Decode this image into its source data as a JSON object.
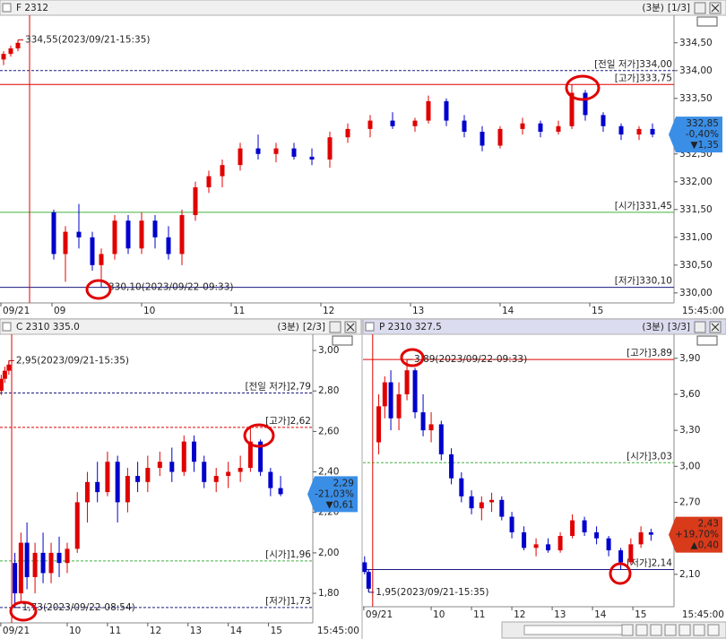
{
  "chart_data": [
    {
      "type": "candlestick",
      "title": "F 2312",
      "interval": "(3분)",
      "page": "[1/3]",
      "up_color": "#e00000",
      "down_color": "#0000cc",
      "x": [
        8.46,
        8.54,
        8.62,
        9.02,
        9.15,
        9.3,
        9.45,
        9.55,
        9.7,
        9.85,
        10.0,
        10.15,
        10.3,
        10.45,
        10.6,
        10.75,
        10.9,
        11.1,
        11.3,
        11.5,
        11.7,
        11.9,
        12.1,
        12.3,
        12.55,
        12.8,
        13.05,
        13.2,
        13.4,
        13.6,
        13.8,
        14.0,
        14.25,
        14.45,
        14.65,
        14.8,
        14.95,
        15.15,
        15.35,
        15.55,
        15.7
      ],
      "open": [
        334.2,
        334.3,
        334.4,
        331.45,
        330.7,
        331.1,
        331.0,
        330.5,
        330.7,
        331.3,
        330.8,
        331.3,
        331.0,
        330.7,
        331.4,
        331.9,
        332.1,
        332.3,
        332.6,
        332.5,
        332.6,
        332.45,
        332.4,
        332.8,
        332.95,
        333.1,
        333.0,
        333.1,
        333.45,
        333.1,
        332.9,
        332.65,
        332.95,
        333.05,
        332.9,
        333.0,
        333.6,
        333.2,
        333.0,
        332.85,
        332.95
      ],
      "high": [
        334.35,
        334.45,
        334.55,
        331.5,
        331.2,
        331.6,
        331.1,
        330.8,
        331.4,
        331.4,
        331.45,
        331.4,
        331.2,
        331.5,
        332.0,
        332.2,
        332.4,
        332.7,
        332.85,
        332.7,
        332.7,
        332.6,
        332.9,
        333.05,
        333.2,
        333.25,
        333.15,
        333.55,
        333.5,
        333.2,
        333.0,
        333.0,
        333.15,
        333.1,
        333.1,
        333.75,
        333.65,
        333.25,
        333.05,
        333.0,
        333.05
      ],
      "low": [
        334.1,
        334.25,
        334.35,
        330.6,
        330.2,
        330.8,
        330.4,
        330.1,
        330.6,
        330.7,
        330.7,
        330.8,
        330.6,
        330.5,
        331.3,
        331.8,
        331.9,
        332.2,
        332.4,
        332.35,
        332.4,
        332.3,
        332.25,
        332.7,
        332.8,
        332.95,
        332.9,
        333.05,
        333.0,
        332.8,
        332.55,
        332.6,
        332.85,
        332.8,
        332.85,
        332.95,
        333.1,
        332.9,
        332.75,
        332.75,
        332.8
      ],
      "close": [
        334.3,
        334.4,
        334.5,
        330.7,
        331.1,
        331.0,
        330.5,
        330.7,
        331.3,
        330.8,
        331.3,
        331.0,
        330.7,
        331.4,
        331.9,
        332.1,
        332.3,
        332.6,
        332.5,
        332.6,
        332.45,
        332.4,
        332.8,
        332.95,
        333.1,
        333.0,
        333.1,
        333.45,
        333.1,
        332.9,
        332.65,
        332.95,
        333.05,
        332.9,
        333.0,
        333.6,
        333.2,
        333.0,
        332.85,
        332.95,
        332.85
      ],
      "xlim": [
        8.42,
        15.94
      ],
      "xticks": [
        {
          "value": 8.43,
          "label": "09/21"
        },
        {
          "value": 9,
          "label": "09"
        },
        {
          "value": 10,
          "label": "10"
        },
        {
          "value": 11,
          "label": "11"
        },
        {
          "value": 12,
          "label": "12"
        },
        {
          "value": 13,
          "label": "13"
        },
        {
          "value": 14,
          "label": "14"
        },
        {
          "value": 15,
          "label": "15"
        }
      ],
      "time_label": "15:45:00",
      "separator_x": 8.75,
      "ylim": [
        329.82,
        334.98
      ],
      "yticks": [
        {
          "value": 330,
          "label": "330,00"
        },
        {
          "value": 330.5,
          "label": "330,50"
        },
        {
          "value": 331,
          "label": "331,00"
        },
        {
          "value": 331.5,
          "label": "331,50"
        },
        {
          "value": 332,
          "label": "332,00"
        },
        {
          "value": 332.5,
          "label": "332,50"
        },
        {
          "value": 333,
          "label": "333,00"
        },
        {
          "value": 333.5,
          "label": "333,50"
        },
        {
          "value": 334,
          "label": "334,00"
        },
        {
          "value": 334.5,
          "label": "334,50"
        }
      ],
      "reference_lines": [
        {
          "label": "[전일 저가]334,00",
          "value": 334.0,
          "color": "#1a1a80",
          "dash": true
        },
        {
          "label": "[고가]333,75",
          "value": 333.75,
          "color": "#e00000",
          "dash": false
        },
        {
          "label": "[시가]331,45",
          "value": 331.45,
          "color": "#40b040",
          "dash": false
        },
        {
          "label": "[저가]330,10",
          "value": 330.1,
          "color": "#1a1a80",
          "dash": false
        }
      ],
      "annotations": [
        {
          "text": "334,55(2023/09/21-15:35)",
          "x": 8.62,
          "value": 334.55,
          "color": "#c00000"
        },
        {
          "text": "330,10(2023/09/22-09:33)",
          "x": 9.55,
          "value": 330.1,
          "color": "#1a1a80"
        }
      ],
      "price_label": {
        "value": 332.85,
        "label": "332,85",
        "change": "-0,40%",
        "diff": "▼1,35",
        "color": "#3a8ee6"
      }
    },
    {
      "type": "candlestick",
      "title": "C 2310 335.0",
      "interval": "(3분)",
      "page": "[2/3]",
      "up_color": "#e00000",
      "down_color": "#0000cc",
      "x": [
        8.36,
        8.45,
        8.55,
        8.7,
        8.85,
        9.0,
        9.2,
        9.4,
        9.6,
        9.8,
        10.0,
        10.25,
        10.5,
        10.75,
        11.0,
        11.25,
        11.5,
        11.75,
        12.0,
        12.3,
        12.6,
        12.9,
        13.15,
        13.4,
        13.7,
        14.0,
        14.3,
        14.55,
        14.8,
        15.05,
        15.3
      ],
      "open": [
        2.8,
        2.86,
        2.9,
        1.95,
        1.8,
        2.05,
        1.88,
        2.0,
        1.9,
        2.0,
        1.95,
        2.02,
        2.25,
        2.35,
        2.3,
        2.45,
        2.25,
        2.38,
        2.35,
        2.42,
        2.45,
        2.4,
        2.55,
        2.45,
        2.35,
        2.38,
        2.4,
        2.42,
        2.55,
        2.4,
        2.32
      ],
      "high": [
        2.88,
        2.92,
        2.95,
        2.0,
        2.1,
        2.15,
        2.05,
        2.1,
        2.05,
        2.08,
        2.05,
        2.3,
        2.4,
        2.45,
        2.5,
        2.48,
        2.42,
        2.45,
        2.48,
        2.5,
        2.52,
        2.58,
        2.58,
        2.48,
        2.42,
        2.45,
        2.48,
        2.62,
        2.56,
        2.42,
        2.38
      ],
      "low": [
        2.78,
        2.84,
        2.88,
        1.73,
        1.76,
        1.82,
        1.8,
        1.85,
        1.85,
        1.88,
        1.9,
        2.0,
        2.15,
        2.25,
        2.28,
        2.15,
        2.2,
        2.3,
        2.3,
        2.38,
        2.35,
        2.38,
        2.4,
        2.32,
        2.3,
        2.32,
        2.35,
        2.4,
        2.38,
        2.28,
        2.28
      ],
      "close": [
        2.86,
        2.9,
        2.93,
        1.8,
        2.05,
        1.88,
        2.0,
        1.9,
        2.0,
        1.95,
        2.02,
        2.25,
        2.35,
        2.3,
        2.45,
        2.25,
        2.38,
        2.35,
        2.42,
        2.45,
        2.4,
        2.55,
        2.45,
        2.35,
        2.38,
        2.4,
        2.42,
        2.55,
        2.4,
        2.32,
        2.29
      ],
      "xlim": [
        8.33,
        16.1
      ],
      "xticks": [
        {
          "value": 8.35,
          "label": "09/21"
        },
        {
          "value": 10,
          "label": "10"
        },
        {
          "value": 11,
          "label": "11"
        },
        {
          "value": 12,
          "label": "12"
        },
        {
          "value": 13,
          "label": "13"
        },
        {
          "value": 14,
          "label": "14"
        },
        {
          "value": 15,
          "label": "15"
        }
      ],
      "time_label": "15:45:00",
      "separator_x": 8.62,
      "ylim": [
        1.654,
        3.08
      ],
      "yticks": [
        {
          "value": 1.8,
          "label": "1,80"
        },
        {
          "value": 2.0,
          "label": "2,00"
        },
        {
          "value": 2.2,
          "label": "2,20"
        },
        {
          "value": 2.4,
          "label": "2,40"
        },
        {
          "value": 2.6,
          "label": "2,60"
        },
        {
          "value": 2.8,
          "label": "2,80"
        },
        {
          "value": 3.0,
          "label": "3,00"
        }
      ],
      "reference_lines": [
        {
          "label": "[전일 저가]2,79",
          "value": 2.79,
          "color": "#1a1a80",
          "dash": true
        },
        {
          "label": "[고가]2,62",
          "value": 2.62,
          "color": "#e00000",
          "dash": true
        },
        {
          "label": "[시가]1,96",
          "value": 1.96,
          "color": "#40b040",
          "dash": true
        },
        {
          "label": "[저가]1,73",
          "value": 1.73,
          "color": "#1a1a80",
          "dash": true
        }
      ],
      "annotations": [
        {
          "text": "2,95(2023/09/21-15:35)",
          "x": 8.55,
          "value": 2.95,
          "color": "#c00000"
        },
        {
          "text": "1,73(2023/09/22-08:54)",
          "x": 8.7,
          "value": 1.73,
          "color": "#1a1a80"
        }
      ],
      "price_label": {
        "value": 2.29,
        "label": "2,29",
        "change": "-21,03%",
        "diff": "▼0,61",
        "color": "#3a8ee6"
      }
    },
    {
      "type": "candlestick",
      "title": "P 2310 327.5",
      "interval": "(3분)",
      "page": "[3/3]",
      "up_color": "#e00000",
      "down_color": "#0000cc",
      "x": [
        8.35,
        8.45,
        8.7,
        8.85,
        9.0,
        9.2,
        9.4,
        9.6,
        9.8,
        10.0,
        10.25,
        10.5,
        10.75,
        11.0,
        11.25,
        11.5,
        11.75,
        12.0,
        12.3,
        12.6,
        12.9,
        13.2,
        13.5,
        13.8,
        14.1,
        14.4,
        14.7,
        14.95,
        15.2,
        15.45
      ],
      "open": [
        2.2,
        2.12,
        3.2,
        3.5,
        3.7,
        3.4,
        3.6,
        3.8,
        3.45,
        3.3,
        3.35,
        3.1,
        2.9,
        2.75,
        2.65,
        2.7,
        2.72,
        2.58,
        2.45,
        2.32,
        2.35,
        2.3,
        2.42,
        2.55,
        2.45,
        2.4,
        2.3,
        2.2,
        2.35,
        2.45
      ],
      "high": [
        2.25,
        2.14,
        3.6,
        3.75,
        3.8,
        3.7,
        3.89,
        3.82,
        3.6,
        3.45,
        3.38,
        3.15,
        2.95,
        2.8,
        2.75,
        2.78,
        2.75,
        2.62,
        2.5,
        2.4,
        2.4,
        2.45,
        2.6,
        2.58,
        2.5,
        2.42,
        2.32,
        2.4,
        2.5,
        2.48
      ],
      "low": [
        2.1,
        1.95,
        3.1,
        3.4,
        3.3,
        3.3,
        3.55,
        3.4,
        3.25,
        3.2,
        3.05,
        2.85,
        2.7,
        2.6,
        2.55,
        2.62,
        2.55,
        2.4,
        2.3,
        2.25,
        2.28,
        2.28,
        2.4,
        2.42,
        2.35,
        2.25,
        2.14,
        2.18,
        2.32,
        2.38
      ],
      "close": [
        2.12,
        1.98,
        3.5,
        3.7,
        3.4,
        3.6,
        3.8,
        3.45,
        3.3,
        3.35,
        3.1,
        2.9,
        2.75,
        2.65,
        2.7,
        2.72,
        2.58,
        2.45,
        2.32,
        2.35,
        2.3,
        2.42,
        2.55,
        2.45,
        2.4,
        2.3,
        2.2,
        2.35,
        2.45,
        2.43
      ],
      "xlim": [
        8.31,
        16.02
      ],
      "xticks": [
        {
          "value": 8.33,
          "label": "09/21"
        },
        {
          "value": 10,
          "label": "10"
        },
        {
          "value": 11,
          "label": "11"
        },
        {
          "value": 12,
          "label": "12"
        },
        {
          "value": 13,
          "label": "13"
        },
        {
          "value": 14,
          "label": "14"
        },
        {
          "value": 15,
          "label": "15"
        }
      ],
      "time_label": "15:45:00",
      "separator_x": 8.55,
      "ylim": [
        1.83,
        4.1
      ],
      "yticks": [
        {
          "value": 2.1,
          "label": "2,10"
        },
        {
          "value": 2.4,
          "label": "2,40"
        },
        {
          "value": 2.7,
          "label": "2,70"
        },
        {
          "value": 3.0,
          "label": "3,00"
        },
        {
          "value": 3.3,
          "label": "3,30"
        },
        {
          "value": 3.6,
          "label": "3,60"
        },
        {
          "value": 3.9,
          "label": "3,90"
        }
      ],
      "reference_lines": [
        {
          "label": "[고가]3,89",
          "value": 3.89,
          "color": "#e00000",
          "dash": false
        },
        {
          "label": "[시가]3,03",
          "value": 3.03,
          "color": "#40b040",
          "dash": true
        },
        {
          "label": "[저가]2,14",
          "value": 2.14,
          "color": "#1a1a80",
          "dash": false
        }
      ],
      "annotations": [
        {
          "text": "3,89(2023/09/22-09:33)",
          "x": 9.4,
          "value": 3.89,
          "color": "#c00000"
        },
        {
          "text": "1,95(2023/09/21-15:35)",
          "x": 8.45,
          "value": 1.95,
          "color": "#1a1a80"
        }
      ],
      "price_label": {
        "value": 2.43,
        "label": "2,43",
        "change": "+19,70%",
        "diff": "▲0,40",
        "color": "#d83a1a"
      }
    }
  ]
}
